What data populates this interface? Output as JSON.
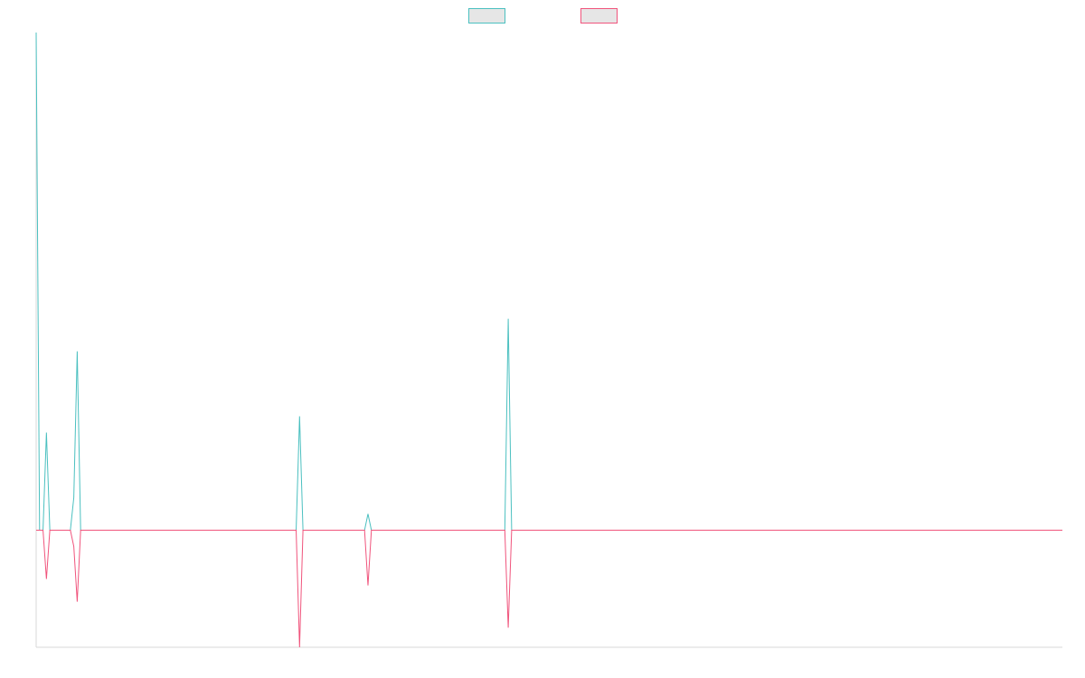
{
  "chart_data": {
    "type": "line",
    "title": "",
    "xlabel": "",
    "ylabel": "",
    "x_count": 301,
    "ylim": [
      -36,
      153
    ],
    "grid": false,
    "legend": "top-center",
    "series": [
      {
        "color": "#4bc0c0",
        "swatch_fill": "#e6e6e6",
        "spikes": [
          {
            "i": 0,
            "v": 153
          },
          {
            "i": 3,
            "v": 30
          },
          {
            "i": 11,
            "v": 10
          },
          {
            "i": 12,
            "v": 55
          },
          {
            "i": 77,
            "v": 35
          },
          {
            "i": 97,
            "v": 5
          },
          {
            "i": 138,
            "v": 65
          }
        ]
      },
      {
        "color": "#f0547c",
        "swatch_fill": "#e6e6e6",
        "spikes": [
          {
            "i": 3,
            "v": -15
          },
          {
            "i": 11,
            "v": -5
          },
          {
            "i": 12,
            "v": -22
          },
          {
            "i": 77,
            "v": -36
          },
          {
            "i": 97,
            "v": -17
          },
          {
            "i": 138,
            "v": -30
          }
        ]
      }
    ]
  }
}
